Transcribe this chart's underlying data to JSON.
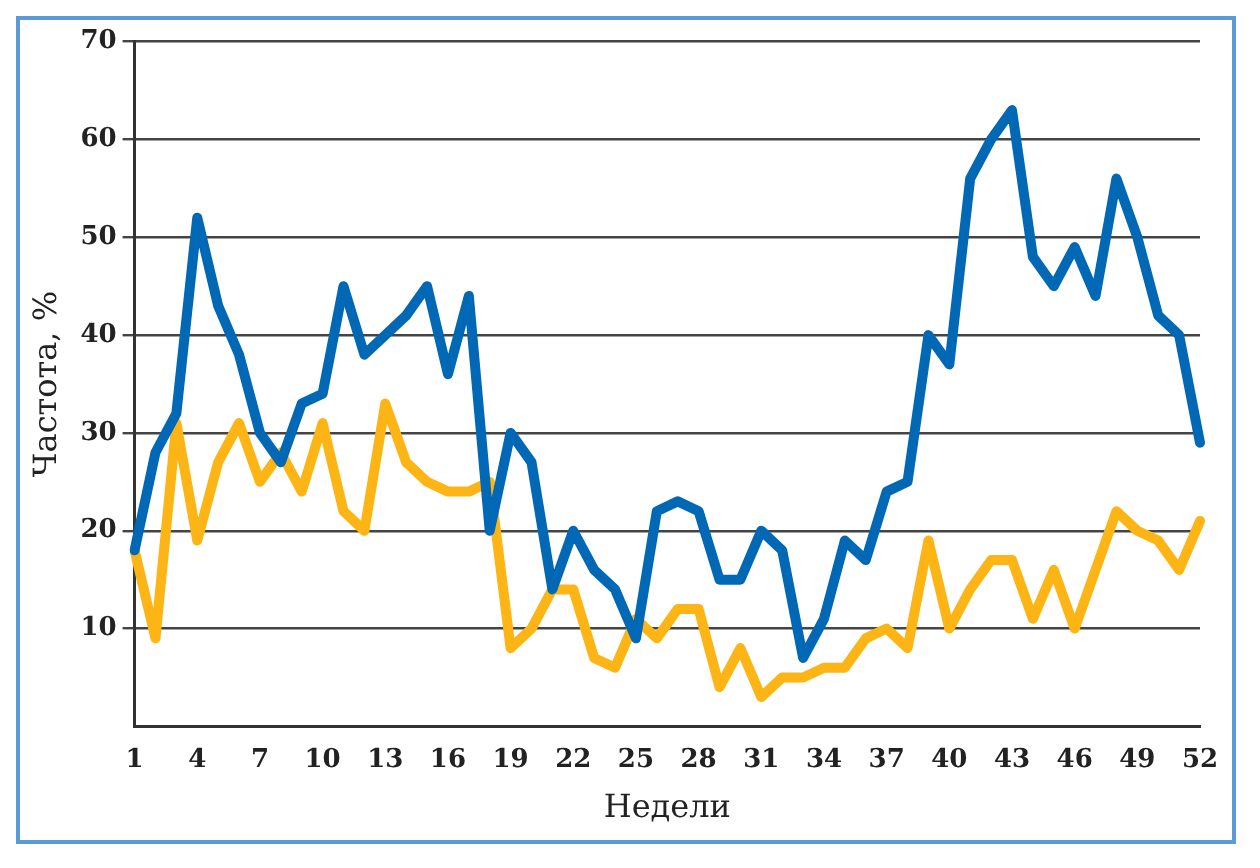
{
  "chart_data": {
    "type": "line",
    "xlabel": "Недели",
    "ylabel": "Частота, %",
    "categories": [
      "1",
      null,
      null,
      "4",
      null,
      null,
      "7",
      null,
      null,
      "10",
      null,
      null,
      "13",
      null,
      null,
      "16",
      null,
      null,
      "19",
      null,
      null,
      "22",
      null,
      null,
      "25",
      null,
      null,
      "28",
      null,
      null,
      "31",
      null,
      null,
      "34",
      null,
      null,
      "37",
      null,
      null,
      "40",
      null,
      null,
      "43",
      null,
      null,
      "46",
      null,
      null,
      "49",
      null,
      null,
      "52"
    ],
    "series": [
      {
        "color": "#0068b4",
        "values": [
          18,
          28,
          32,
          52,
          43,
          38,
          30,
          27,
          33,
          34,
          45,
          38,
          40,
          42,
          45,
          36,
          44,
          20,
          30,
          27,
          14,
          20,
          16,
          14,
          9,
          22,
          23,
          22,
          15,
          15,
          20,
          18,
          7,
          11,
          19,
          17,
          24,
          25,
          40,
          37,
          56,
          60,
          63,
          48,
          45,
          49,
          44,
          56,
          50,
          42,
          40,
          29
        ]
      },
      {
        "color": "#fdb515",
        "values": [
          18,
          9,
          31,
          19,
          27,
          31,
          25,
          28,
          24,
          31,
          22,
          20,
          33,
          27,
          25,
          24,
          24,
          25,
          8,
          10,
          14,
          14,
          7,
          6,
          11,
          9,
          12,
          12,
          4,
          8,
          3,
          5,
          5,
          6,
          6,
          9,
          10,
          8,
          19,
          10,
          14,
          17,
          17,
          11,
          16,
          10,
          16,
          22,
          20,
          19,
          16,
          21
        ]
      }
    ],
    "ylim": [
      0,
      70
    ],
    "yticks": [
      {
        "value": 0,
        "label": null
      },
      10,
      20,
      30,
      40,
      50,
      60,
      70
    ],
    "grid": "y",
    "legend": false,
    "marker": "none",
    "line_style": "solid"
  }
}
